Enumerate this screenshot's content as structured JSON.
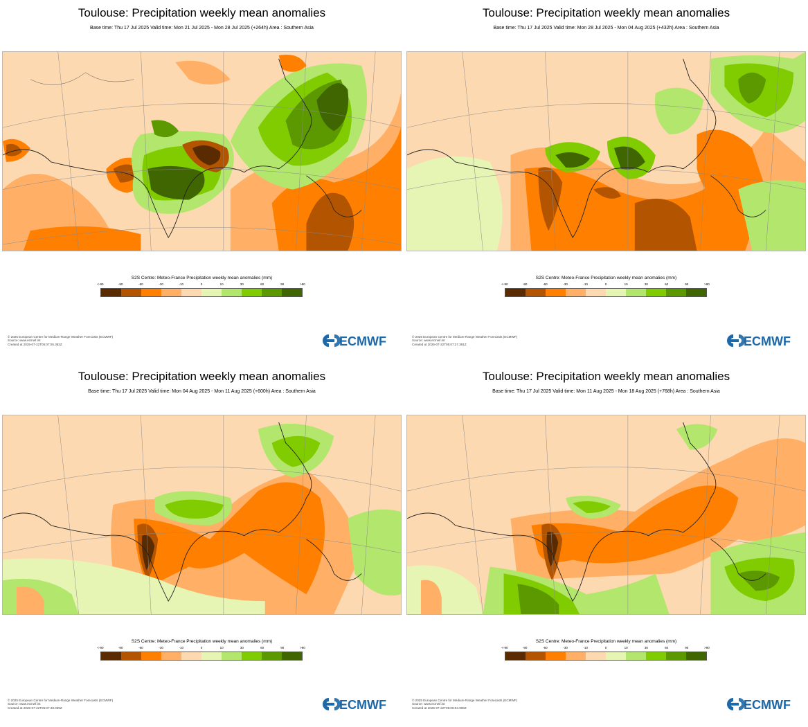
{
  "panels": [
    {
      "title": "Toulouse: Precipitation weekly mean anomalies",
      "subtitle": "Base time: Thu 17 Jul 2025 Valid time: Mon 21 Jul 2025 - Mon 28 Jul 2025 (+264h) Area : Southern Asia",
      "legend_title": "S2S Centre: Meteo-France Precipitation weekly mean anomalies (mm)",
      "footer": [
        "© 2025 European Centre for Medium-Range Weather Forecasts (ECMWF)",
        "Source: www.ecmwf.int",
        "Created at 2025-07-22T05:07:05.382Z"
      ],
      "logo_text": "ECMWF"
    },
    {
      "title": "Toulouse: Precipitation weekly mean anomalies",
      "subtitle": "Base time: Thu 17 Jul 2025 Valid time: Mon 28 Jul 2025 - Mon 04 Aug 2025 (+432h) Area : Southern Asia",
      "legend_title": "S2S Centre: Meteo-France Precipitation weekly mean anomalies (mm)",
      "footer": [
        "© 2025 European Centre for Medium-Range Weather Forecasts (ECMWF)",
        "Source: www.ecmwf.int",
        "Created at 2025-07-22T05:07:27.381Z"
      ],
      "logo_text": "ECMWF"
    },
    {
      "title": "Toulouse: Precipitation weekly mean anomalies",
      "subtitle": "Base time: Thu 17 Jul 2025 Valid time: Mon 04 Aug 2025 - Mon 11 Aug 2025 (+600h) Area : Southern Asia",
      "legend_title": "S2S Centre: Meteo-France Precipitation weekly mean anomalies (mm)",
      "footer": [
        "© 2025 European Centre for Medium-Range Weather Forecasts (ECMWF)",
        "Source: www.ecmwf.int",
        "Created at 2025-07-22T05:07:48.039Z"
      ],
      "logo_text": "ECMWF"
    },
    {
      "title": "Toulouse: Precipitation weekly mean anomalies",
      "subtitle": "Base time: Thu 17 Jul 2025 Valid time: Mon 11 Aug 2025 - Mon 18 Aug 2025 (+768h) Area : Southern Asia",
      "legend_title": "S2S Centre: Meteo-France Precipitation weekly mean anomalies (mm)",
      "footer": [
        "© 2025 European Centre for Medium-Range Weather Forecasts (ECMWF)",
        "Source: www.ecmwf.int",
        "Created at 2025-07-22T05:08:04.900Z"
      ],
      "logo_text": "ECMWF"
    }
  ],
  "legend": {
    "ticks": [
      "<-90",
      "-90",
      "-60",
      "-30",
      "-10",
      "0",
      "10",
      "30",
      "60",
      "90",
      ">90"
    ],
    "colors": [
      "#5a2a00",
      "#b35400",
      "#ff7f00",
      "#ffb066",
      "#fdd9b2",
      "#e6f5b3",
      "#b3e66c",
      "#80cc00",
      "#5c9900",
      "#3f6600"
    ]
  },
  "colors": {
    "land_neutral": "#fdd9b2",
    "orange_light": "#ffb066",
    "orange": "#ff7f00",
    "brown": "#b35400",
    "dark_brown": "#5a2a00",
    "green_pale": "#e6f5b3",
    "green_light": "#b3e66c",
    "green": "#80cc00",
    "green_dark": "#5c9900",
    "green_darkest": "#3f6600",
    "coastline": "#222222",
    "gridline": "#8a8a8a",
    "logo_blue": "#1d68a8"
  }
}
